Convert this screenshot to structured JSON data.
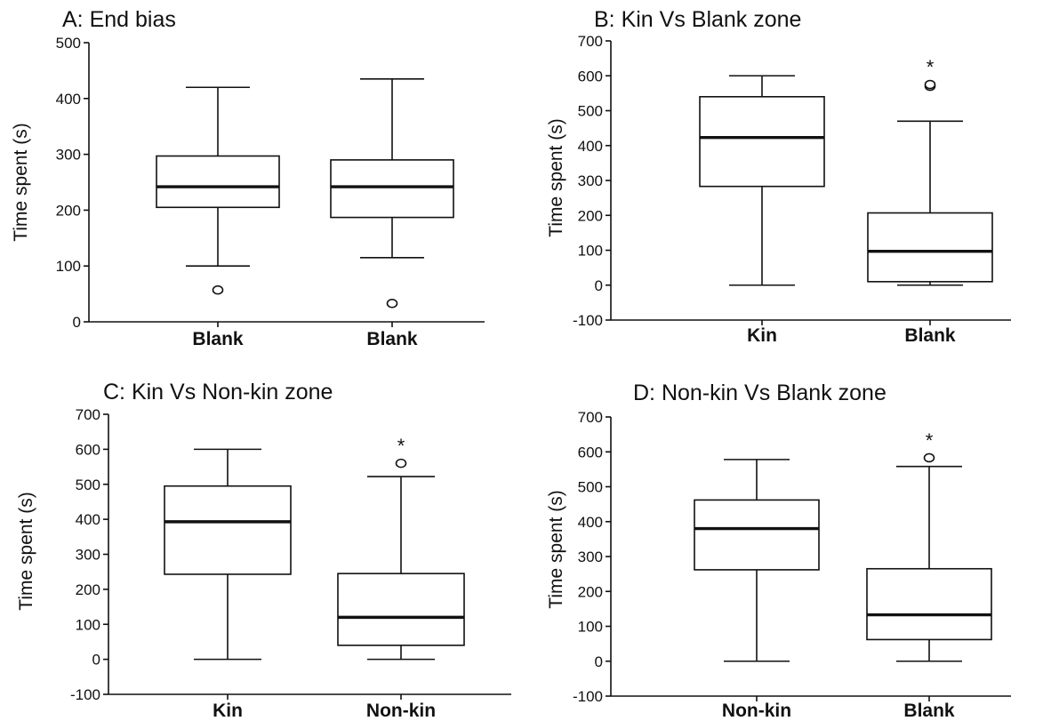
{
  "chart_data": [
    {
      "id": "A",
      "type": "boxplot",
      "title": "A: End bias",
      "ylabel": "Time spent (s)",
      "ylim": [
        0,
        500
      ],
      "yticks": [
        0,
        100,
        200,
        300,
        400,
        500
      ],
      "categories": [
        "Blank",
        "Blank"
      ],
      "boxes": [
        {
          "whisker_low": 100,
          "q1": 205,
          "median": 242,
          "q3": 297,
          "whisker_high": 420,
          "outliers": [
            57
          ],
          "significant": false
        },
        {
          "whisker_low": 115,
          "q1": 187,
          "median": 242,
          "q3": 290,
          "whisker_high": 435,
          "outliers": [
            33
          ],
          "significant": false
        }
      ]
    },
    {
      "id": "B",
      "type": "boxplot",
      "title": "B: Kin Vs Blank zone",
      "ylabel": "Time spent (s)",
      "ylim": [
        -100,
        700
      ],
      "yticks": [
        -100,
        0,
        100,
        200,
        300,
        400,
        500,
        600,
        700
      ],
      "categories": [
        "Kin",
        "Blank"
      ],
      "boxes": [
        {
          "whisker_low": 0,
          "q1": 283,
          "median": 423,
          "q3": 540,
          "whisker_high": 600,
          "outliers": [],
          "significant": false
        },
        {
          "whisker_low": 0,
          "q1": 10,
          "median": 97,
          "q3": 207,
          "whisker_high": 470,
          "outliers": [
            570,
            575
          ],
          "significant": true
        }
      ],
      "significance_mark": "*"
    },
    {
      "id": "C",
      "type": "boxplot",
      "title": "C: Kin Vs Non-kin zone",
      "ylabel": "Time spent (s)",
      "ylim": [
        -100,
        700
      ],
      "yticks": [
        -100,
        0,
        100,
        200,
        300,
        400,
        500,
        600,
        700
      ],
      "categories": [
        "Kin",
        "Non-kin"
      ],
      "boxes": [
        {
          "whisker_low": 0,
          "q1": 243,
          "median": 393,
          "q3": 495,
          "whisker_high": 600,
          "outliers": [],
          "significant": false
        },
        {
          "whisker_low": 0,
          "q1": 40,
          "median": 120,
          "q3": 245,
          "whisker_high": 522,
          "outliers": [
            560
          ],
          "significant": true
        }
      ],
      "significance_mark": "*"
    },
    {
      "id": "D",
      "type": "boxplot",
      "title": "D: Non-kin Vs Blank zone",
      "ylabel": "Time spent (s)",
      "ylim": [
        -100,
        700
      ],
      "yticks": [
        -100,
        0,
        100,
        200,
        300,
        400,
        500,
        600,
        700
      ],
      "categories": [
        "Non-kin",
        "Blank"
      ],
      "boxes": [
        {
          "whisker_low": 0,
          "q1": 262,
          "median": 380,
          "q3": 462,
          "whisker_high": 578,
          "outliers": [],
          "significant": false
        },
        {
          "whisker_low": 0,
          "q1": 62,
          "median": 133,
          "q3": 265,
          "whisker_high": 558,
          "outliers": [
            583
          ],
          "significant": true
        }
      ],
      "significance_mark": "*"
    }
  ]
}
